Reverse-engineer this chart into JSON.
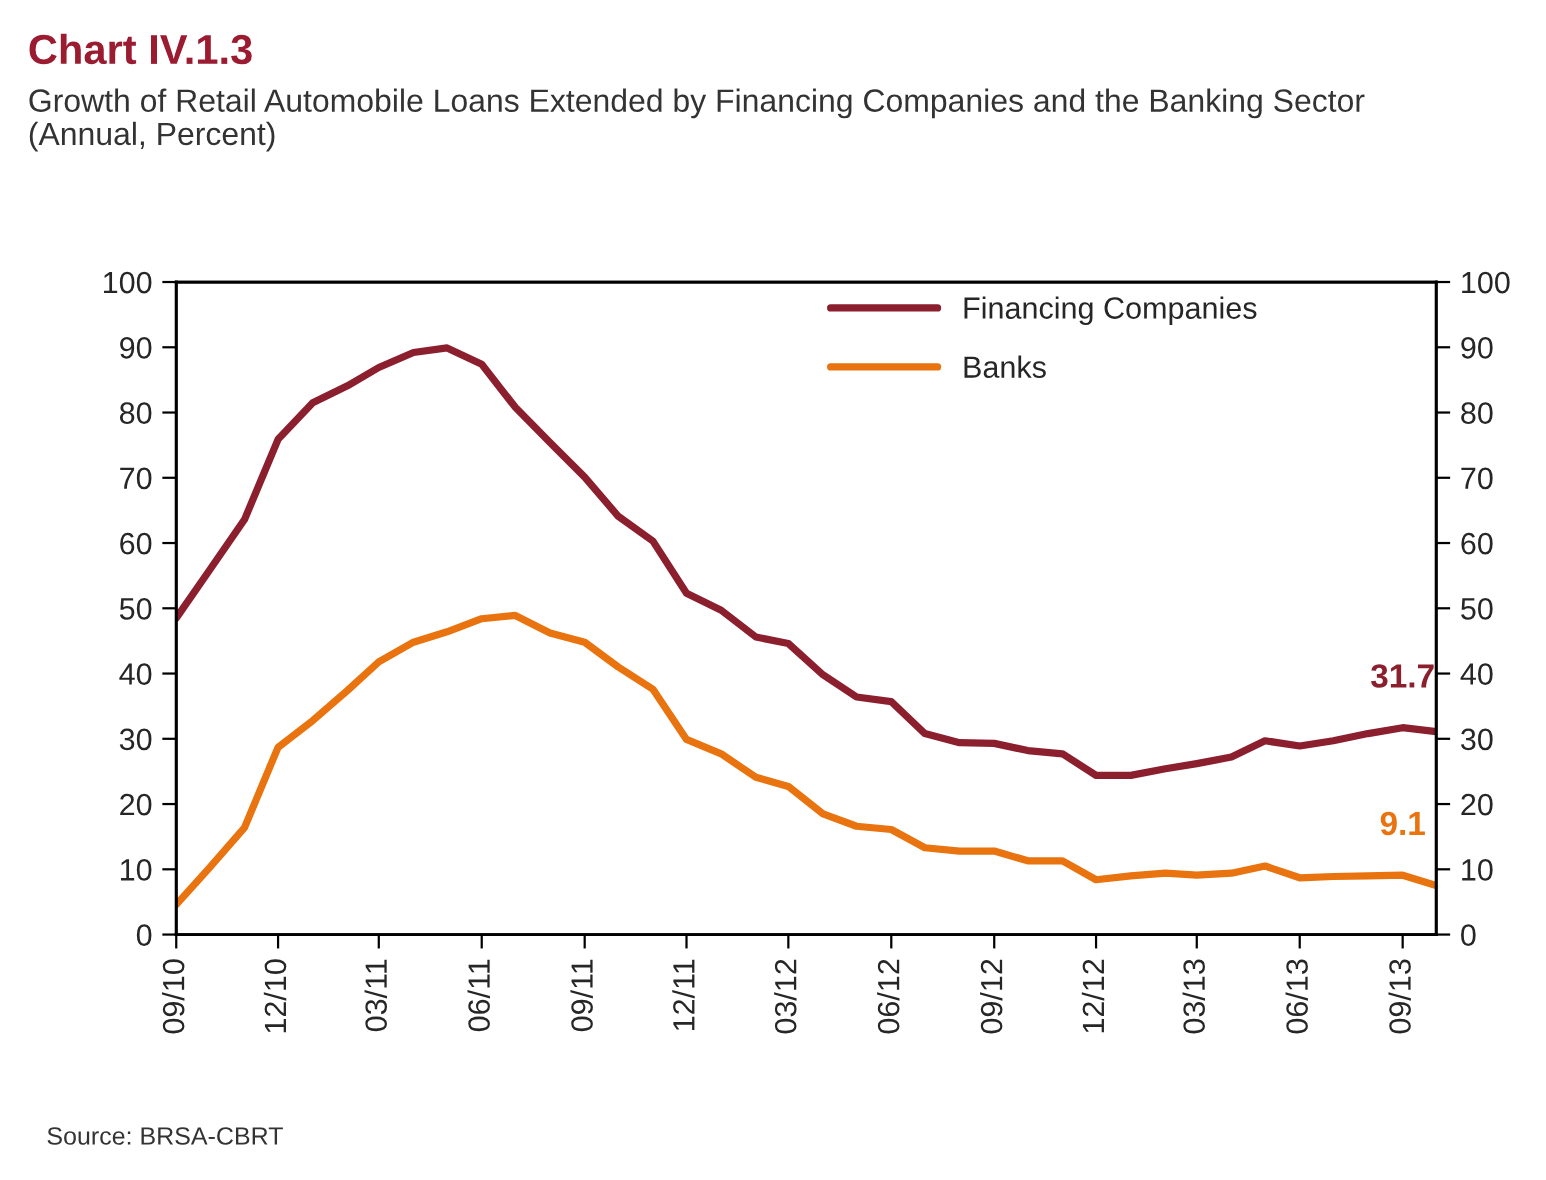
{
  "chart_data": {
    "type": "line",
    "title": "Chart IV.1.3",
    "subtitle": "Growth of Retail Automobile Loans Extended by Financing Companies and the Banking Sector\n(Annual, Percent)",
    "x": [
      "2010-09",
      "2010-10",
      "2010-11",
      "2010-12",
      "2011-01",
      "2011-02",
      "2011-03",
      "2011-04",
      "2011-05",
      "2011-06",
      "2011-07",
      "2011-08",
      "2011-09",
      "2011-10",
      "2011-11",
      "2011-12",
      "2012-01",
      "2012-02",
      "2012-03",
      "2012-04",
      "2012-05",
      "2012-06",
      "2012-07",
      "2012-08",
      "2012-09",
      "2012-10",
      "2012-11",
      "2012-12",
      "2013-01",
      "2013-02",
      "2013-03",
      "2013-04",
      "2013-05",
      "2013-06",
      "2013-07",
      "2013-08",
      "2013-09",
      "2013-10"
    ],
    "series": [
      {
        "name": "Financing Companies",
        "color": "#8b1f2e",
        "values": [
          48.5,
          55.9,
          63.6,
          75.9,
          81.5,
          84.1,
          86.9,
          89.2,
          89.9,
          87.4,
          80.8,
          75.4,
          70.1,
          64.1,
          60.3,
          52.3,
          49.7,
          45.6,
          44.6,
          39.8,
          36.4,
          35.7,
          30.8,
          29.4,
          29.3,
          28.2,
          27.7,
          24.4,
          24.4,
          25.4,
          26.2,
          27.2,
          29.7,
          28.9,
          29.7,
          30.8,
          31.7,
          31.1
        ]
      },
      {
        "name": "Banks",
        "color": "#e8730f",
        "values": [
          4.6,
          10.3,
          16.4,
          28.7,
          32.8,
          37.4,
          41.8,
          44.8,
          46.4,
          48.4,
          48.9,
          46.2,
          44.8,
          41.0,
          37.6,
          29.9,
          27.7,
          24.1,
          22.7,
          18.5,
          16.6,
          16.1,
          13.3,
          12.8,
          12.8,
          11.3,
          11.3,
          8.4,
          9.0,
          9.4,
          9.1,
          9.4,
          10.5,
          8.7,
          8.9,
          9.0,
          9.1,
          7.5
        ]
      }
    ],
    "xlim": [
      "2010-09",
      "2013-10"
    ],
    "xticks": [
      {
        "value": "2010-09",
        "label": "09/10"
      },
      {
        "value": "2010-12",
        "label": "12/10"
      },
      {
        "value": "2011-03",
        "label": "03/11"
      },
      {
        "value": "2011-06",
        "label": "06/11"
      },
      {
        "value": "2011-09",
        "label": "09/11"
      },
      {
        "value": "2011-12",
        "label": "12/11"
      },
      {
        "value": "2012-03",
        "label": "03/12"
      },
      {
        "value": "2012-06",
        "label": "06/12"
      },
      {
        "value": "2012-09",
        "label": "09/12"
      },
      {
        "value": "2012-12",
        "label": "12/12"
      },
      {
        "value": "2013-03",
        "label": "03/13"
      },
      {
        "value": "2013-06",
        "label": "06/13"
      },
      {
        "value": "2013-09",
        "label": "09/13"
      }
    ],
    "ylim": [
      0,
      100
    ],
    "yticks": [
      0,
      10,
      20,
      30,
      40,
      50,
      60,
      70,
      80,
      90,
      100
    ],
    "y2lim": [
      0,
      100
    ],
    "y2ticks": [
      0,
      10,
      20,
      30,
      40,
      50,
      60,
      70,
      80,
      90,
      100
    ],
    "annotations": [
      {
        "text": "31.7",
        "x": "2013-09",
        "y": 31.7
      },
      {
        "text": "9.1",
        "x": "2013-09",
        "y": 9.1
      },
      "Source: BRSA-CBRT"
    ],
    "legend": "top right",
    "grid": false,
    "line_style": "solid",
    "marker": "none"
  }
}
